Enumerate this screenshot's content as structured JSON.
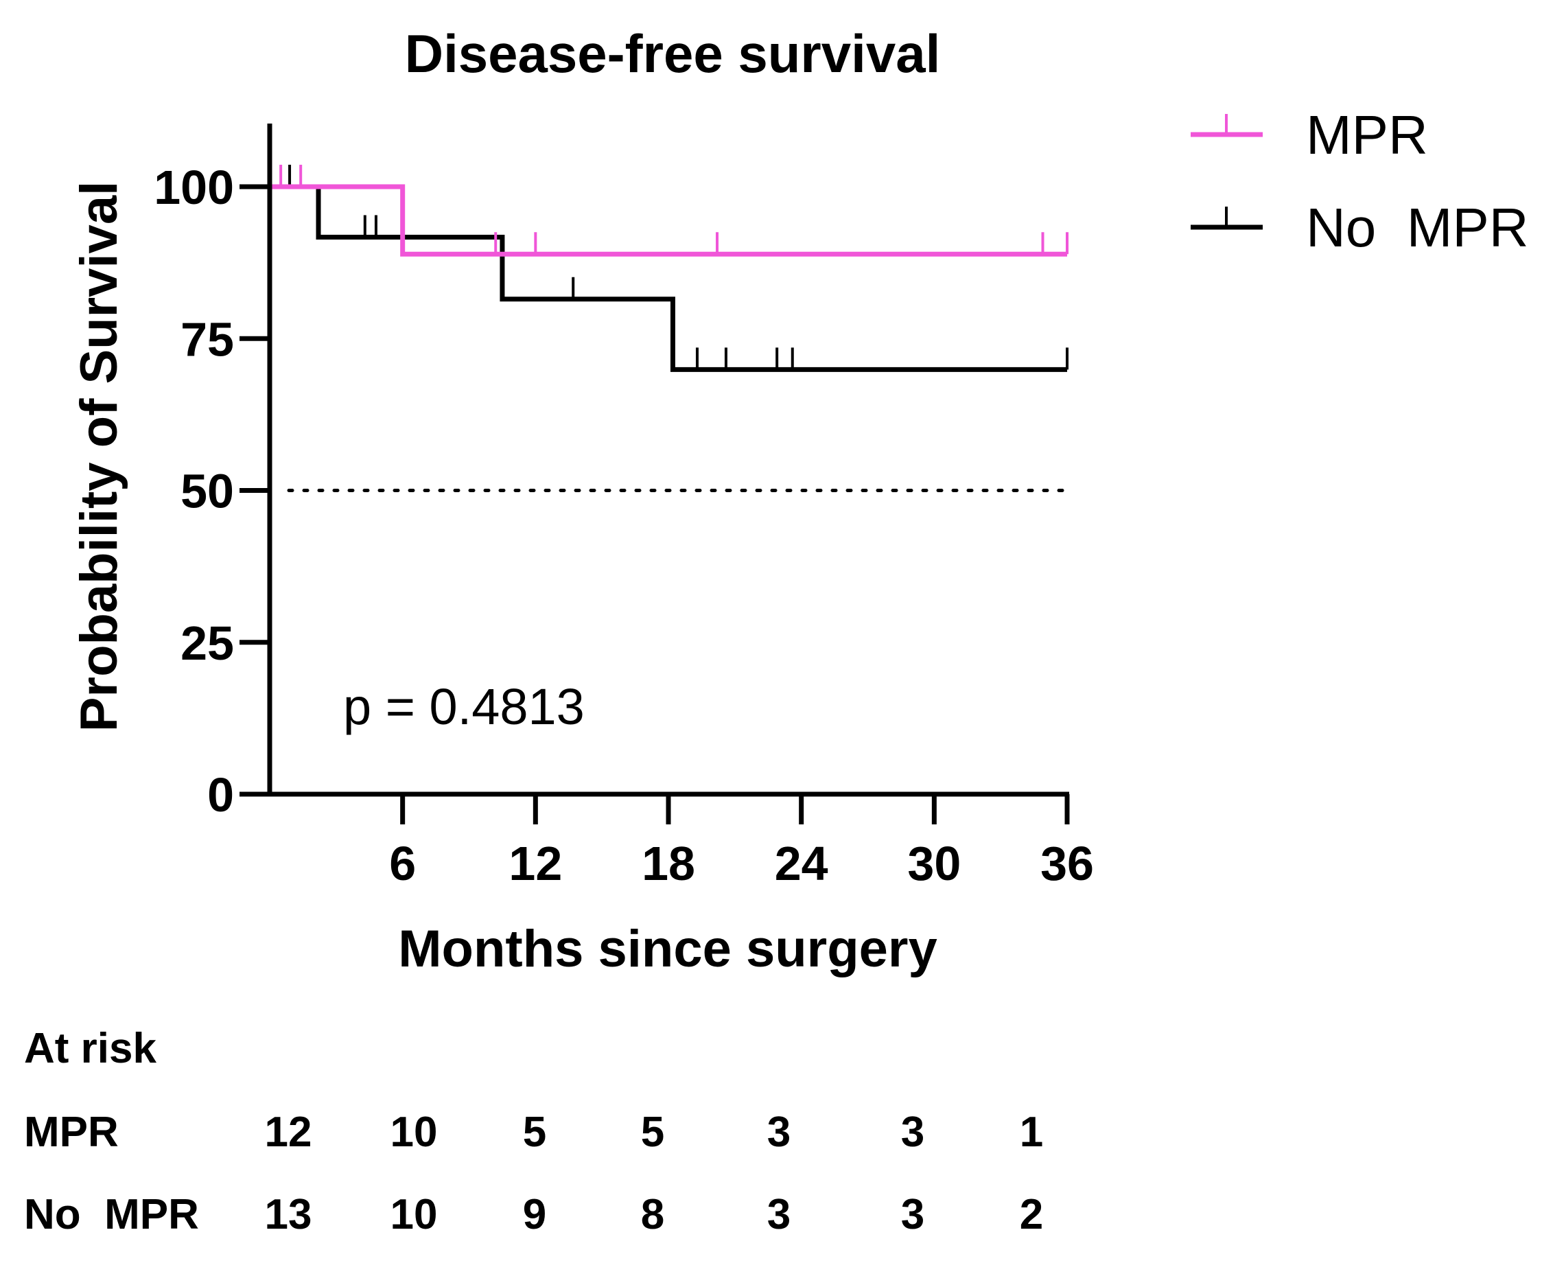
{
  "chart_data": {
    "type": "line",
    "title": "Disease-free survival",
    "xlabel": "Months since surgery",
    "ylabel": "Probability of Survival",
    "xlim": [
      0,
      36
    ],
    "ylim": [
      0,
      100
    ],
    "x_ticks": [
      6,
      12,
      18,
      24,
      30,
      36
    ],
    "y_ticks": [
      0,
      25,
      50,
      75,
      100
    ],
    "grid": false,
    "legend_position": "top-right",
    "reference_line": {
      "y": 50,
      "style": "dotted"
    },
    "annotation": "p = 0.4813",
    "series": [
      {
        "name": "MPR",
        "color": "#f056d8",
        "steps": [
          [
            0,
            100
          ],
          [
            6,
            100
          ],
          [
            6,
            88.9
          ],
          [
            36,
            88.9
          ]
        ],
        "censored": [
          [
            0.5,
            100
          ],
          [
            1.4,
            100
          ],
          [
            10.2,
            88.9
          ],
          [
            12,
            88.9
          ],
          [
            20.2,
            88.9
          ],
          [
            34.9,
            88.9
          ],
          [
            36,
            88.9
          ]
        ]
      },
      {
        "name": "No  MPR",
        "color": "#000000",
        "steps": [
          [
            0,
            100
          ],
          [
            2.2,
            100
          ],
          [
            2.2,
            91.7
          ],
          [
            10.5,
            91.7
          ],
          [
            10.5,
            81.5
          ],
          [
            18.2,
            81.5
          ],
          [
            18.2,
            69.9
          ],
          [
            36,
            69.9
          ]
        ],
        "censored": [
          [
            0.9,
            100
          ],
          [
            4.3,
            91.7
          ],
          [
            4.8,
            91.7
          ],
          [
            13.7,
            81.5
          ],
          [
            19.3,
            69.9
          ],
          [
            20.6,
            69.9
          ],
          [
            22.9,
            69.9
          ],
          [
            23.6,
            69.9
          ],
          [
            36,
            69.9
          ]
        ]
      }
    ],
    "at_risk": {
      "heading": "At risk",
      "rows": [
        {
          "label": "MPR",
          "values": [
            "12",
            "10",
            "5",
            "5",
            "3",
            "3",
            "1"
          ]
        },
        {
          "label": "No  MPR",
          "values": [
            "13",
            "10",
            "9",
            "8",
            "3",
            "3",
            "2"
          ]
        }
      ]
    }
  }
}
